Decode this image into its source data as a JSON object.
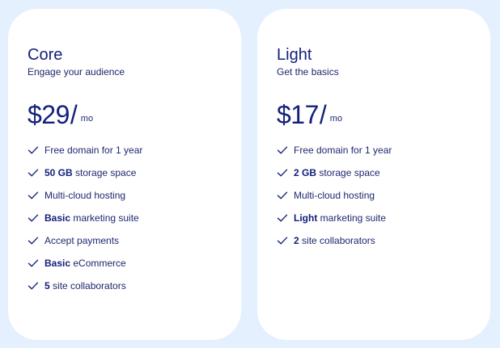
{
  "plans": [
    {
      "name": "Core",
      "tagline": "Engage your audience",
      "price": "$29",
      "slash": "/",
      "period": "mo",
      "features": [
        {
          "bold": "",
          "text": "Free domain for 1 year"
        },
        {
          "bold": "50 GB",
          "text": " storage space"
        },
        {
          "bold": "",
          "text": "Multi-cloud hosting"
        },
        {
          "bold": "Basic",
          "text": " marketing suite"
        },
        {
          "bold": "",
          "text": "Accept payments"
        },
        {
          "bold": "Basic",
          "text": " eCommerce"
        },
        {
          "bold": "5",
          "text": " site collaborators"
        }
      ]
    },
    {
      "name": "Light",
      "tagline": "Get the basics",
      "price": "$17",
      "slash": "/",
      "period": "mo",
      "features": [
        {
          "bold": "",
          "text": "Free domain for 1 year"
        },
        {
          "bold": "2 GB",
          "text": " storage space"
        },
        {
          "bold": "",
          "text": "Multi-cloud hosting"
        },
        {
          "bold": "Light",
          "text": " marketing suite"
        },
        {
          "bold": "2",
          "text": " site collaborators"
        }
      ]
    }
  ],
  "icons": {
    "feature_check": "check-icon"
  },
  "colors": {
    "background": "#e5f0fe",
    "card": "#ffffff",
    "text": "#13207a"
  }
}
